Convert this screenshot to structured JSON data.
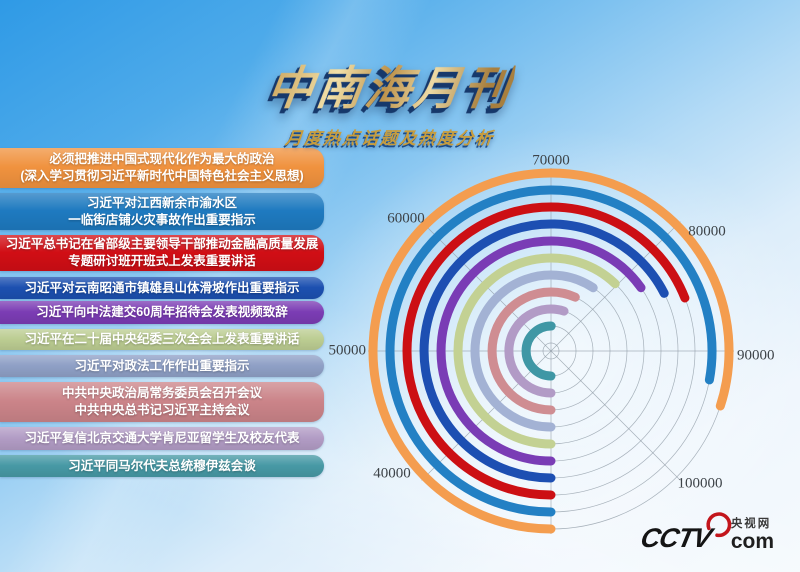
{
  "title": "中南海月刊",
  "subtitle": "月度热点话题及热度分析",
  "topics": [
    {
      "lines": [
        "必须把推进中国式现代化作为最大的政治",
        "(深入学习贯彻习近平新时代中国特色社会主义思想)"
      ],
      "color": "#f0923e",
      "heat": 94000
    },
    {
      "lines": [
        "习近平对江西新余市渝水区",
        "一临街店铺火灾事故作出重要指示"
      ],
      "color": "#1e7ac0",
      "heat": 92300
    },
    {
      "lines": [
        "习近平总书记在省部级主要领导干部推动金融高质量发展",
        "专题研讨班开班式上发表重要讲话"
      ],
      "color": "#d10e15",
      "heat": 85200
    },
    {
      "lines": [
        "习近平对云南昭通市镇雄县山体滑坡作出重要指示"
      ],
      "color": "#1c50b0",
      "heat": 84000
    },
    {
      "lines": [
        "习近平向中法建交60周年招待会发表视频致辞"
      ],
      "color": "#7b3cb4",
      "heat": 82200
    },
    {
      "lines": [
        "习近平在二十届中央纪委三次全会上发表重要讲话"
      ],
      "color": "#bccd92",
      "heat": 79700
    },
    {
      "lines": [
        "习近平对政法工作作出重要指示"
      ],
      "color": "#8fa0c6",
      "heat": 77500
    },
    {
      "lines": [
        "中共中央政治局常务委员会召开会议",
        "中共中央总书记习近平主持会议"
      ],
      "color": "#cb8489",
      "heat": 75400
    },
    {
      "lines": [
        "习近平复信北京交通大学肯尼亚留学生及校友代表"
      ],
      "color": "#b29cc5",
      "heat": 74000
    },
    {
      "lines": [
        "习近平同马尔代夫总统穆伊兹会谈"
      ],
      "color": "#4799a5",
      "heat": 70100
    }
  ],
  "chart_data": {
    "type": "bar",
    "variant": "polar_radial_bars",
    "title": "月度热点话题及热度分析",
    "categories": [
      "必须把推进中国式现代化作为最大的政治(深入学习贯彻习近平新时代中国特色社会主义思想)",
      "习近平对江西新余市渝水区一临街店铺火灾事故作出重要指示",
      "习近平总书记在省部级主要领导干部推动金融高质量发展专题研讨班开班式上发表重要讲话",
      "习近平对云南昭通市镇雄县山体滑坡作出重要指示",
      "习近平向中法建交60周年招待会发表视频致辞",
      "习近平在二十届中央纪委三次全会上发表重要讲话",
      "习近平对政法工作作出重要指示",
      "中共中央政治局常务委员会召开会议 中共中央总书记习近平主持会议",
      "习近平复信北京交通大学肯尼亚留学生及校友代表",
      "习近平同马尔代夫总统穆伊兹会谈"
    ],
    "values": [
      94000,
      92300,
      85200,
      84000,
      82200,
      79700,
      77500,
      75400,
      74000,
      70100
    ],
    "colors": [
      "#f49d4f",
      "#2380c4",
      "#cc0f14",
      "#1d4fb2",
      "#7a3cb5",
      "#c3d193",
      "#a3b2d4",
      "#cf8d92",
      "#b29bc6",
      "#3f97a5"
    ],
    "angular_axis": {
      "range": [
        30000,
        110000
      ],
      "tick_labels": [
        "40000",
        "50000",
        "60000",
        "70000",
        "80000",
        "90000",
        "100000"
      ],
      "degrees_per_tick": 45,
      "direction": "clockwise_from_bottom"
    },
    "grid": true,
    "legend": false
  },
  "logo": {
    "brand": "CCTV",
    "site_name": "央视网",
    "domain": "com"
  }
}
